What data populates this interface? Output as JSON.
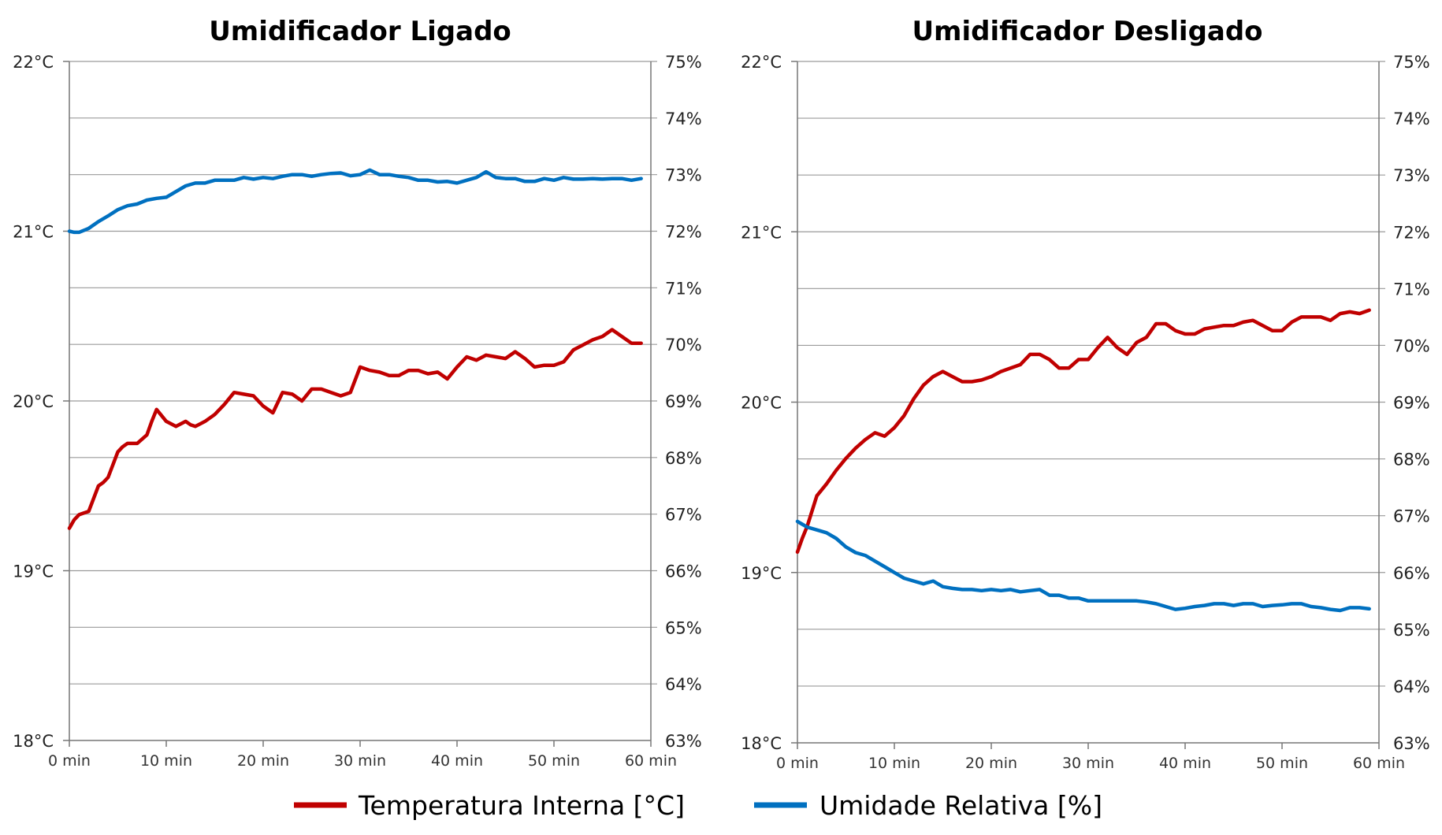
{
  "chart_data": [
    {
      "type": "line",
      "title": "Umidificador Ligado",
      "x_ticks": [
        "0 min",
        "10 min",
        "20 min",
        "30 min",
        "40 min",
        "50 min",
        "60 min"
      ],
      "xlim": [
        0,
        60
      ],
      "y_left_ticks": [
        "22°C",
        "21°C",
        "20°C",
        "19°C",
        "18°C"
      ],
      "y_left_lim": [
        18,
        22
      ],
      "y_right_ticks": [
        "75%",
        "74%",
        "73%",
        "72%",
        "71%",
        "70%",
        "69%",
        "68%",
        "67%",
        "66%",
        "65%",
        "64%",
        "63%"
      ],
      "y_right_lim": [
        63,
        75
      ],
      "grid": true,
      "series": [
        {
          "name": "Temperatura Interna [°C]",
          "axis": "left",
          "color": "#c00000",
          "x": [
            0,
            0.5,
            1,
            2,
            3,
            3.5,
            4,
            5,
            5.5,
            6,
            7,
            8,
            8.5,
            9,
            10,
            11,
            12,
            12.5,
            13,
            14,
            15,
            16,
            17,
            18,
            19,
            20,
            21,
            22,
            23,
            24,
            25,
            26,
            27,
            28,
            29,
            30,
            31,
            32,
            33,
            34,
            35,
            36,
            37,
            38,
            39,
            40,
            41,
            42,
            43,
            44,
            45,
            46,
            47,
            48,
            49,
            50,
            51,
            52,
            53,
            54,
            55,
            56,
            57,
            58,
            59
          ],
          "values": [
            19.25,
            19.3,
            19.33,
            19.35,
            19.5,
            19.52,
            19.55,
            19.7,
            19.73,
            19.75,
            19.75,
            19.8,
            19.88,
            19.95,
            19.88,
            19.85,
            19.88,
            19.86,
            19.85,
            19.88,
            19.92,
            19.98,
            20.05,
            20.04,
            20.03,
            19.97,
            19.93,
            20.05,
            20.04,
            20.0,
            20.07,
            20.07,
            20.05,
            20.03,
            20.05,
            20.2,
            20.18,
            20.17,
            20.15,
            20.15,
            20.18,
            20.18,
            20.16,
            20.17,
            20.13,
            20.2,
            20.26,
            20.24,
            20.27,
            20.26,
            20.25,
            20.29,
            20.25,
            20.2,
            20.21,
            20.21,
            20.23,
            20.3,
            20.33,
            20.36,
            20.38,
            20.42,
            20.38,
            20.34,
            20.34
          ]
        },
        {
          "name": "Umidade Relativa [%]",
          "axis": "right",
          "color": "#0070c0",
          "x": [
            0,
            0.5,
            1,
            2,
            3,
            4,
            5,
            6,
            7,
            8,
            9,
            10,
            11,
            12,
            13,
            14,
            15,
            16,
            17,
            18,
            19,
            20,
            21,
            22,
            23,
            24,
            25,
            26,
            27,
            28,
            29,
            30,
            31,
            32,
            33,
            34,
            35,
            36,
            37,
            38,
            39,
            40,
            41,
            42,
            43,
            44,
            45,
            46,
            47,
            48,
            49,
            50,
            51,
            52,
            53,
            54,
            55,
            56,
            57,
            58,
            59
          ],
          "values": [
            72.0,
            71.98,
            71.98,
            72.05,
            72.17,
            72.27,
            72.38,
            72.45,
            72.48,
            72.55,
            72.58,
            72.6,
            72.7,
            72.8,
            72.85,
            72.85,
            72.9,
            72.9,
            72.9,
            72.95,
            72.92,
            72.95,
            72.93,
            72.97,
            73.0,
            73.0,
            72.97,
            73.0,
            73.02,
            73.03,
            72.98,
            73.0,
            73.08,
            73.0,
            73.0,
            72.97,
            72.95,
            72.9,
            72.9,
            72.87,
            72.88,
            72.85,
            72.9,
            72.95,
            73.05,
            72.95,
            72.93,
            72.93,
            72.88,
            72.88,
            72.93,
            72.9,
            72.95,
            72.92,
            72.92,
            72.93,
            72.92,
            72.93,
            72.93,
            72.9,
            72.93
          ]
        }
      ]
    },
    {
      "type": "line",
      "title": "Umidificador Desligado",
      "x_ticks": [
        "0 min",
        "10 min",
        "20 min",
        "30 min",
        "40 min",
        "50 min",
        "60 min"
      ],
      "xlim": [
        0,
        60
      ],
      "y_left_ticks": [
        "22°C",
        "21°C",
        "20°C",
        "19°C",
        "18°C"
      ],
      "y_left_lim": [
        18,
        22
      ],
      "y_right_ticks": [
        "75%",
        "74%",
        "73%",
        "72%",
        "71%",
        "70%",
        "69%",
        "68%",
        "67%",
        "66%",
        "65%",
        "64%",
        "63%"
      ],
      "y_right_lim": [
        63,
        75
      ],
      "grid": true,
      "series": [
        {
          "name": "Temperatura Interna [°C]",
          "axis": "left",
          "color": "#c00000",
          "x": [
            0,
            0.5,
            1,
            2,
            3,
            4,
            5,
            6,
            7,
            8,
            9,
            10,
            11,
            12,
            13,
            14,
            15,
            16,
            17,
            18,
            19,
            20,
            21,
            22,
            23,
            24,
            25,
            26,
            27,
            28,
            29,
            30,
            31,
            32,
            33,
            34,
            35,
            36,
            37,
            38,
            39,
            40,
            41,
            42,
            43,
            44,
            45,
            46,
            47,
            48,
            49,
            50,
            51,
            52,
            53,
            54,
            55,
            56,
            57,
            58,
            59
          ],
          "values": [
            19.12,
            19.2,
            19.27,
            19.45,
            19.52,
            19.6,
            19.67,
            19.73,
            19.78,
            19.82,
            19.8,
            19.85,
            19.92,
            20.02,
            20.1,
            20.15,
            20.18,
            20.15,
            20.12,
            20.12,
            20.13,
            20.15,
            20.18,
            20.2,
            20.22,
            20.28,
            20.28,
            20.25,
            20.2,
            20.2,
            20.25,
            20.25,
            20.32,
            20.38,
            20.32,
            20.28,
            20.35,
            20.38,
            20.46,
            20.46,
            20.42,
            20.4,
            20.4,
            20.43,
            20.44,
            20.45,
            20.45,
            20.47,
            20.48,
            20.45,
            20.42,
            20.42,
            20.47,
            20.5,
            20.5,
            20.5,
            20.48,
            20.52,
            20.53,
            20.52,
            20.54
          ]
        },
        {
          "name": "Umidade Relativa [%]",
          "axis": "right",
          "color": "#0070c0",
          "x": [
            0,
            0.5,
            1,
            2,
            3,
            4,
            5,
            6,
            7,
            8,
            9,
            10,
            11,
            12,
            13,
            14,
            15,
            16,
            17,
            18,
            19,
            20,
            21,
            22,
            23,
            24,
            25,
            26,
            27,
            28,
            29,
            30,
            31,
            32,
            33,
            34,
            35,
            36,
            37,
            38,
            39,
            40,
            41,
            42,
            43,
            44,
            45,
            46,
            47,
            48,
            49,
            50,
            51,
            52,
            53,
            54,
            55,
            56,
            57,
            58,
            59
          ],
          "values": [
            66.9,
            66.85,
            66.8,
            66.75,
            66.7,
            66.6,
            66.45,
            66.35,
            66.3,
            66.2,
            66.1,
            66.0,
            65.9,
            65.85,
            65.8,
            65.85,
            65.75,
            65.72,
            65.7,
            65.7,
            65.68,
            65.7,
            65.68,
            65.7,
            65.66,
            65.68,
            65.7,
            65.6,
            65.6,
            65.55,
            65.55,
            65.5,
            65.5,
            65.5,
            65.5,
            65.5,
            65.5,
            65.48,
            65.45,
            65.4,
            65.35,
            65.37,
            65.4,
            65.42,
            65.45,
            65.45,
            65.42,
            65.45,
            65.45,
            65.4,
            65.42,
            65.43,
            65.45,
            65.45,
            65.4,
            65.38,
            65.35,
            65.33,
            65.38,
            65.38,
            65.36
          ]
        }
      ]
    }
  ],
  "legend": {
    "placement": "bottom",
    "items": [
      {
        "label": "Temperatura Interna [°C]",
        "color": "#c00000"
      },
      {
        "label": "Umidade Relativa [%]",
        "color": "#0070c0"
      }
    ]
  }
}
